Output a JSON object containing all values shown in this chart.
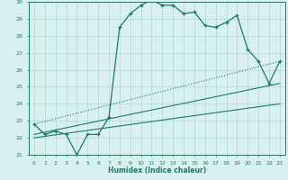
{
  "xlabel": "Humidex (Indice chaleur)",
  "x_values": [
    0,
    1,
    2,
    3,
    4,
    5,
    6,
    7,
    8,
    9,
    10,
    11,
    12,
    13,
    14,
    15,
    16,
    17,
    18,
    19,
    20,
    21,
    22,
    23
  ],
  "y_main": [
    22.8,
    22.2,
    22.4,
    22.2,
    21.0,
    22.2,
    22.2,
    23.2,
    28.5,
    29.3,
    29.8,
    30.1,
    29.8,
    29.8,
    29.3,
    29.4,
    28.6,
    28.5,
    28.8,
    29.2,
    27.2,
    26.5,
    25.2,
    26.5
  ],
  "line1_dotted": [
    [
      0,
      22.8
    ],
    [
      23,
      26.5
    ]
  ],
  "line2_solid": [
    [
      0,
      22.2
    ],
    [
      23,
      25.2
    ]
  ],
  "line3_solid": [
    [
      0,
      22.0
    ],
    [
      23,
      24.0
    ]
  ],
  "main_color": "#1a7a6e",
  "bg_color": "#d8f0ee",
  "grid_color": "#b0d8d4",
  "ylim": [
    21,
    30
  ],
  "xlim": [
    -0.5,
    23.5
  ],
  "yticks": [
    21,
    22,
    23,
    24,
    25,
    26,
    27,
    28,
    29,
    30
  ],
  "xticks": [
    0,
    1,
    2,
    3,
    4,
    5,
    6,
    7,
    8,
    9,
    10,
    11,
    12,
    13,
    14,
    15,
    16,
    17,
    18,
    19,
    20,
    21,
    22,
    23
  ]
}
